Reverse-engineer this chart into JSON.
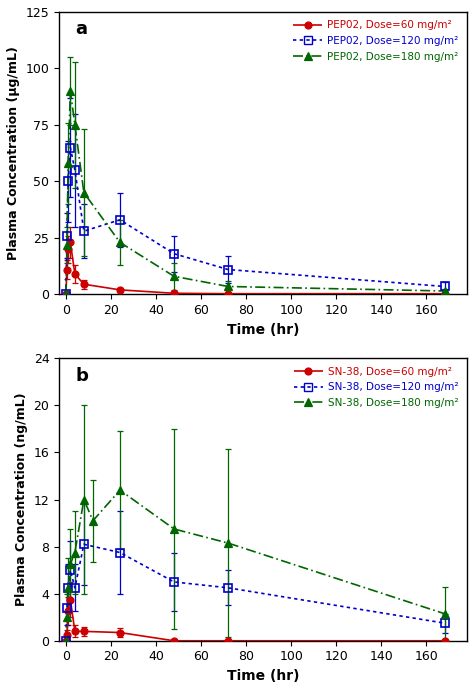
{
  "panel_a": {
    "title": "a",
    "ylabel": "Plasma Concentration (μg/mL)",
    "xlabel": "Time (hr)",
    "ylim": [
      0,
      125
    ],
    "yticks": [
      0,
      25,
      50,
      75,
      100,
      125
    ],
    "xlim": [
      -3,
      178
    ],
    "xticks": [
      0,
      20,
      40,
      60,
      80,
      100,
      120,
      140,
      160
    ],
    "series": [
      {
        "label": "PEP02, Dose=60 mg/m²",
        "color": "#cc0000",
        "linestyle": "-",
        "marker": "o",
        "markerfacecolor": "#cc0000",
        "markeredgecolor": "#cc0000",
        "markersize": 5,
        "fillstyle": "full",
        "x": [
          0,
          0.5,
          1,
          2,
          4,
          8,
          24,
          48,
          72,
          168
        ],
        "y": [
          0,
          11,
          20,
          23,
          9,
          4.5,
          2,
          0.5,
          0.3,
          0.3
        ],
        "yerr": [
          0,
          4,
          6,
          7,
          4,
          2,
          1,
          0.3,
          0.2,
          0.2
        ]
      },
      {
        "label": "PEP02, Dose=120 mg/m²",
        "color": "#0000cc",
        "linestyle": ":",
        "marker": "s",
        "markerfacecolor": "none",
        "markeredgecolor": "#0000cc",
        "markersize": 6,
        "fillstyle": "none",
        "x": [
          0,
          0.5,
          1,
          2,
          4,
          8,
          24,
          48,
          72,
          168
        ],
        "y": [
          0,
          26,
          50,
          65,
          55,
          28,
          33,
          18,
          11,
          3.5
        ],
        "yerr": [
          0,
          10,
          18,
          22,
          25,
          12,
          12,
          8,
          6,
          2
        ]
      },
      {
        "label": "PEP02, Dose=180 mg/m²",
        "color": "#006600",
        "linestyle": "-.",
        "marker": "^",
        "markerfacecolor": "#006600",
        "markeredgecolor": "#006600",
        "markersize": 6,
        "fillstyle": "full",
        "x": [
          0,
          0.5,
          1,
          2,
          4,
          8,
          24,
          48,
          72,
          168
        ],
        "y": [
          0,
          22,
          58,
          90,
          75,
          45,
          23,
          8,
          3.5,
          1.5
        ],
        "yerr": [
          0,
          8,
          18,
          15,
          28,
          28,
          10,
          6,
          2.5,
          1
        ]
      }
    ]
  },
  "panel_b": {
    "title": "b",
    "ylabel": "Plasma Concentration (ng/mL)",
    "xlabel": "Time (hr)",
    "ylim": [
      0,
      24
    ],
    "yticks": [
      0,
      4,
      8,
      12,
      16,
      20,
      24
    ],
    "xlim": [
      -3,
      178
    ],
    "xticks": [
      0,
      20,
      40,
      60,
      80,
      100,
      120,
      140,
      160
    ],
    "series": [
      {
        "label": "SN-38, Dose=60 mg/m²",
        "color": "#cc0000",
        "linestyle": "-",
        "marker": "o",
        "markerfacecolor": "#cc0000",
        "markeredgecolor": "#cc0000",
        "markersize": 5,
        "fillstyle": "full",
        "x": [
          0,
          0.5,
          1,
          2,
          4,
          8,
          24,
          48,
          72,
          168
        ],
        "y": [
          0,
          0.5,
          2.5,
          3.5,
          0.8,
          0.8,
          0.7,
          0.0,
          0.0,
          0.0
        ],
        "yerr": [
          0,
          0.4,
          1.2,
          1.5,
          0.5,
          0.4,
          0.4,
          0.0,
          0.0,
          0.0
        ]
      },
      {
        "label": "SN-38, Dose=120 mg/m²",
        "color": "#0000cc",
        "linestyle": ":",
        "marker": "s",
        "markerfacecolor": "none",
        "markeredgecolor": "#0000cc",
        "markersize": 6,
        "fillstyle": "none",
        "x": [
          0,
          0.5,
          1,
          2,
          4,
          8,
          24,
          48,
          72,
          168
        ],
        "y": [
          0,
          2.8,
          4.5,
          6.0,
          4.5,
          8.2,
          7.5,
          5.0,
          4.5,
          1.5
        ],
        "yerr": [
          0,
          1.5,
          2.0,
          2.5,
          2.0,
          3.5,
          3.5,
          2.5,
          1.5,
          0.8
        ]
      },
      {
        "label": "SN-38, Dose=180 mg/m²",
        "color": "#006600",
        "linestyle": "-.",
        "marker": "^",
        "markerfacecolor": "#006600",
        "markeredgecolor": "#006600",
        "markersize": 6,
        "fillstyle": "full",
        "x": [
          0,
          0.5,
          1,
          2,
          4,
          8,
          12,
          24,
          48,
          72,
          168
        ],
        "y": [
          0,
          2.0,
          4.5,
          6.5,
          7.5,
          12.0,
          10.2,
          12.8,
          9.5,
          8.3,
          2.3
        ],
        "yerr": [
          0,
          2.0,
          2.5,
          3.0,
          3.5,
          8.0,
          3.5,
          5.0,
          8.5,
          8.0,
          2.3
        ]
      }
    ]
  },
  "background_color": "#ffffff",
  "legend_fontsize": 7.5,
  "axis_label_fontsize": 10,
  "tick_fontsize": 9,
  "title_fontsize": 13
}
